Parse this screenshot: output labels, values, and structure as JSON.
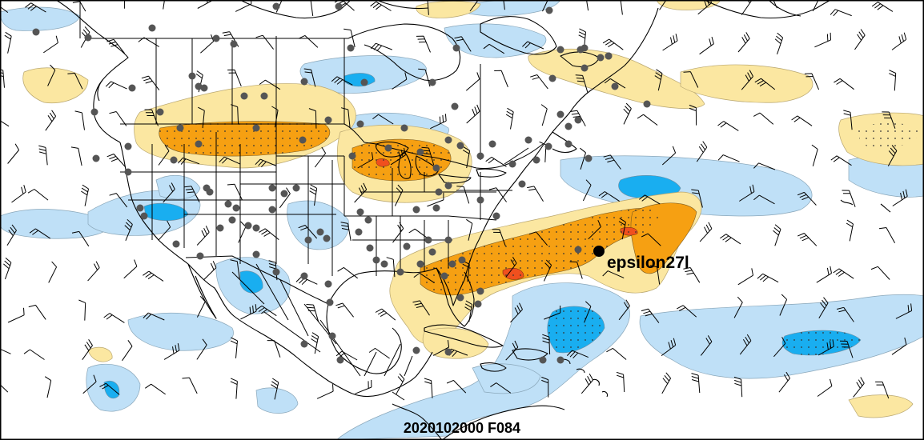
{
  "storm": {
    "name": "epsilon27l"
  },
  "run": {
    "label": "2020102000 F084"
  },
  "colors": {
    "light_blue": "#bfe0f7",
    "blue": "#19aef0",
    "light_yellow": "#fbe7a1",
    "orange": "#f6a012",
    "red": "#f0501e",
    "station": "#555555",
    "coast": "#000000"
  }
}
